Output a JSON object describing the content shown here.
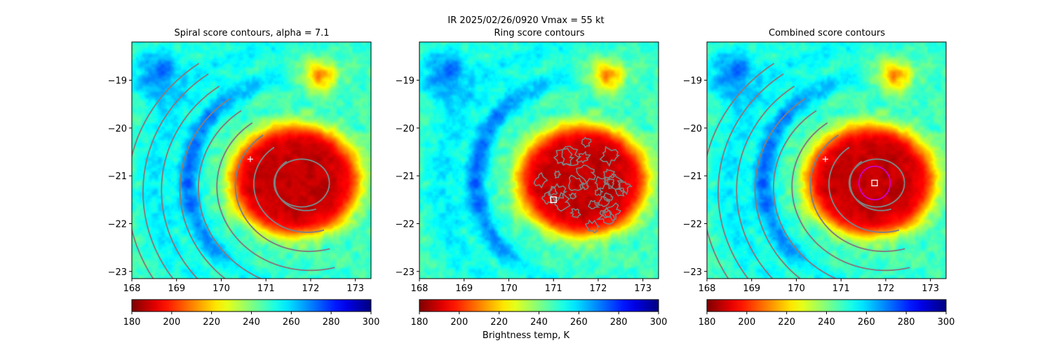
{
  "suptitle": "IR  2025/02/26/0920    Vmax = 55 kt",
  "colorbar_label": "Brightness temp, K",
  "chart_data": [
    {
      "type": "heatmap",
      "title": "Spiral score contours, alpha =  7.1",
      "xlim": [
        168,
        173.35
      ],
      "ylim": [
        -23.15,
        -18.2
      ],
      "xticks": [
        168,
        169,
        170,
        171,
        172,
        173
      ],
      "yticks": [
        -19,
        -20,
        -21,
        -22,
        -23
      ],
      "colorbar": {
        "min": 180,
        "max": 300,
        "ticks": [
          180,
          200,
          220,
          240,
          260,
          280,
          300
        ],
        "colormap": "jet_r"
      },
      "center_marker": {
        "lon": 170.65,
        "lat": -20.65,
        "symbol": "+"
      },
      "contour_color": "#808080",
      "contours": "spiral"
    },
    {
      "type": "heatmap",
      "title": "Ring score contours",
      "xlim": [
        168,
        173.35
      ],
      "ylim": [
        -23.15,
        -18.2
      ],
      "xticks": [
        168,
        169,
        170,
        171,
        172,
        173
      ],
      "yticks": [
        -19,
        -20,
        -21,
        -22,
        -23
      ],
      "colorbar": {
        "min": 180,
        "max": 300,
        "ticks": [
          180,
          200,
          220,
          240,
          260,
          280,
          300
        ],
        "colormap": "jet_r"
      },
      "center_marker": {
        "lon": 171.0,
        "lat": -21.5,
        "symbol": "square"
      },
      "contour_color": "#808080",
      "contours": "ring"
    },
    {
      "type": "heatmap",
      "title": "Combined score contours",
      "xlim": [
        168,
        173.35
      ],
      "ylim": [
        -23.15,
        -18.2
      ],
      "xticks": [
        168,
        169,
        170,
        171,
        172,
        173
      ],
      "yticks": [
        -19,
        -20,
        -21,
        -22,
        -23
      ],
      "colorbar": {
        "min": 180,
        "max": 300,
        "ticks": [
          180,
          200,
          220,
          240,
          260,
          280,
          300
        ],
        "colormap": "jet_r"
      },
      "center_marker": {
        "lon": 171.75,
        "lat": -21.15,
        "symbol": "square"
      },
      "secondary_marker": {
        "lon": 170.65,
        "lat": -20.65,
        "symbol": "+"
      },
      "ring_circle": {
        "lon": 171.75,
        "lat": -21.15,
        "radius_deg": 0.35,
        "color": "#cc00cc"
      },
      "contour_color": "#808080",
      "contours": "spiral"
    }
  ],
  "storm": {
    "lon": 171.65,
    "lat": -21.1,
    "core_temp": 188,
    "environment_temp": 248,
    "moat_temp": 272,
    "background_warm_temp": 232
  },
  "colors": {
    "contour": "#808080",
    "ring_marker": "#cc00cc",
    "axes": "#000000"
  }
}
